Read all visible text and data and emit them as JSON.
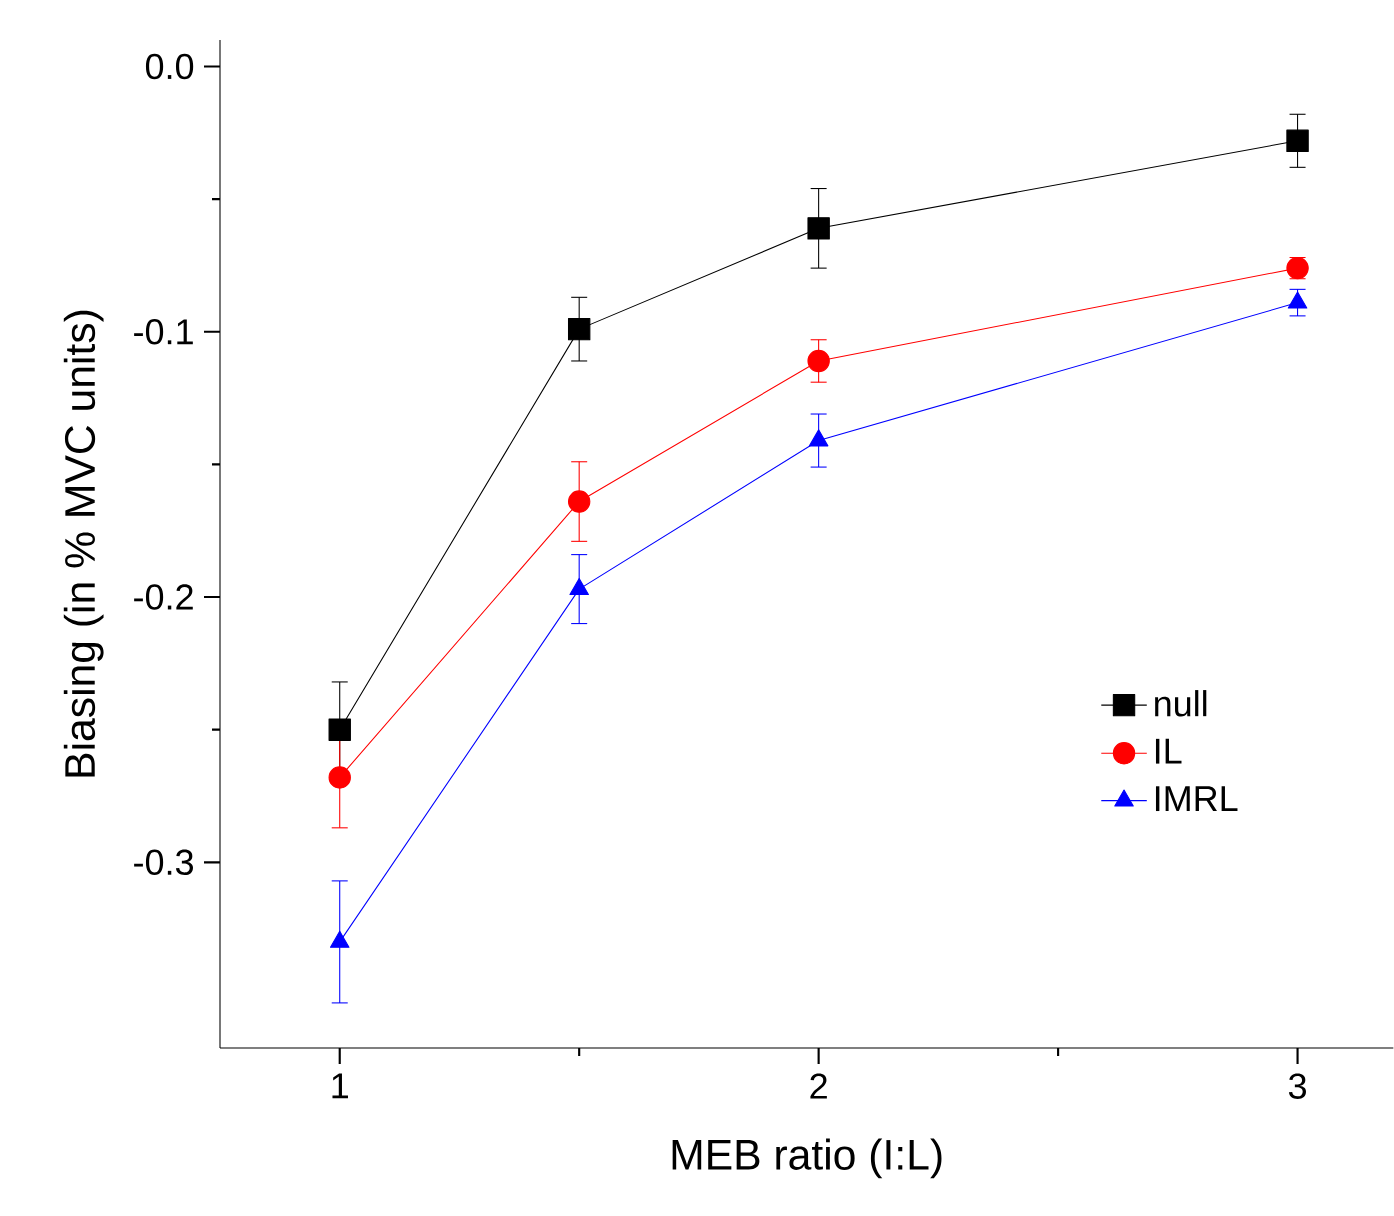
{
  "chart_data": {
    "type": "line",
    "xlabel": "MEB ratio (I:L)",
    "ylabel": "Biasing (in % MVC units)",
    "x": [
      1,
      1.5,
      2,
      3
    ],
    "series": [
      {
        "name": "null",
        "color": "#000000",
        "marker": "square",
        "values": [
          -0.25,
          -0.099,
          -0.061,
          -0.028
        ],
        "errors": [
          0.018,
          0.012,
          0.015,
          0.01
        ]
      },
      {
        "name": "IL",
        "color": "#ff0000",
        "marker": "circle",
        "values": [
          -0.268,
          -0.164,
          -0.111,
          -0.076
        ],
        "errors": [
          0.019,
          0.015,
          0.008,
          0.004
        ]
      },
      {
        "name": "IMRL",
        "color": "#0000ff",
        "marker": "triangle",
        "values": [
          -0.33,
          -0.197,
          -0.141,
          -0.089
        ],
        "errors": [
          0.023,
          0.013,
          0.01,
          0.005
        ]
      }
    ],
    "xlim": [
      0.75,
      3.2
    ],
    "xticks": [
      1,
      2,
      3
    ],
    "ylim": [
      -0.37,
      0.01
    ],
    "yticks": [
      {
        "value": 0,
        "label": "0.0"
      },
      -0.1,
      -0.2,
      -0.3
    ],
    "legend": "bottom right",
    "grid": false,
    "line_style": "solid"
  }
}
